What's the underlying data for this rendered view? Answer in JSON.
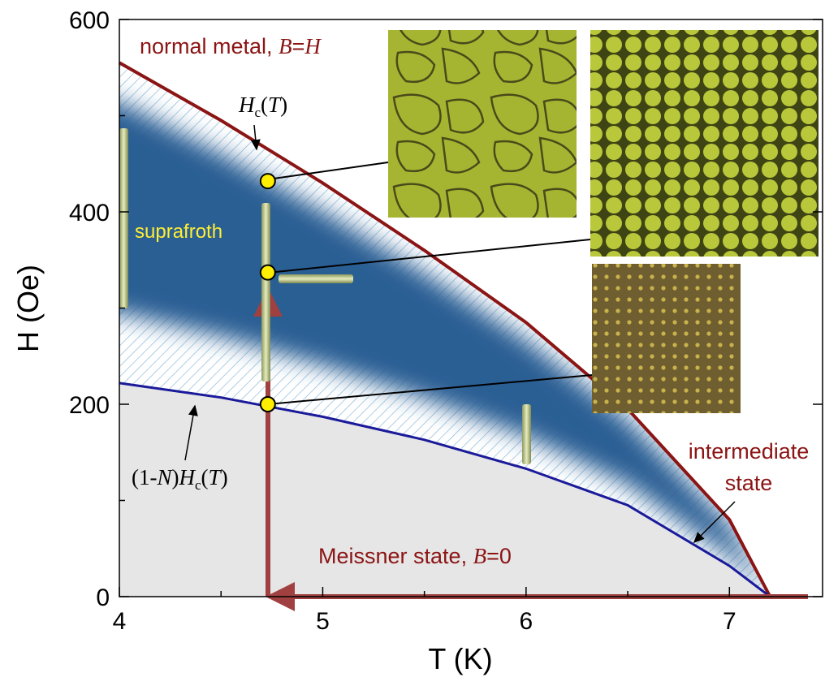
{
  "chart_data": {
    "type": "line",
    "xlabel": "T (K)",
    "ylabel": "H (Oe)",
    "xlim": [
      4,
      7.47
    ],
    "ylim": [
      0,
      600
    ],
    "xticks": [
      4,
      5,
      6,
      7
    ],
    "yticks": [
      0,
      200,
      400,
      600
    ],
    "xminorticks": [
      4.5,
      5.5,
      6.5
    ],
    "yminorticks": [
      100,
      300,
      500
    ],
    "series": [
      {
        "color": "#8b1414",
        "x": [
          4,
          4.5,
          5,
          5.5,
          6,
          6.5,
          7,
          7.2
        ],
        "values": [
          555,
          495,
          430,
          360,
          285,
          195,
          80,
          0
        ]
      },
      {
        "color": "#1a1a9a",
        "x": [
          4,
          4.5,
          5,
          5.5,
          6,
          6.5,
          7,
          7.2
        ],
        "values": [
          222,
          207,
          187,
          163,
          133,
          95,
          32,
          0
        ]
      }
    ],
    "points": {
      "color": "#ffee00",
      "x": [
        4.73,
        4.73,
        4.73
      ],
      "values": [
        432,
        337,
        200
      ]
    },
    "annotations": {
      "normal_metal": [
        "normal metal, ",
        "B",
        "=",
        "H"
      ],
      "hc": [
        "H",
        "c",
        "(",
        "T",
        ")"
      ],
      "lower": [
        "(1-",
        "N",
        ")",
        "H",
        "c",
        "(",
        "T",
        ")"
      ],
      "suprafroth": "suprafroth",
      "intermediate": [
        "intermediate",
        "state"
      ],
      "meissner": [
        "Meissner state, ",
        "B",
        "=0"
      ]
    }
  }
}
